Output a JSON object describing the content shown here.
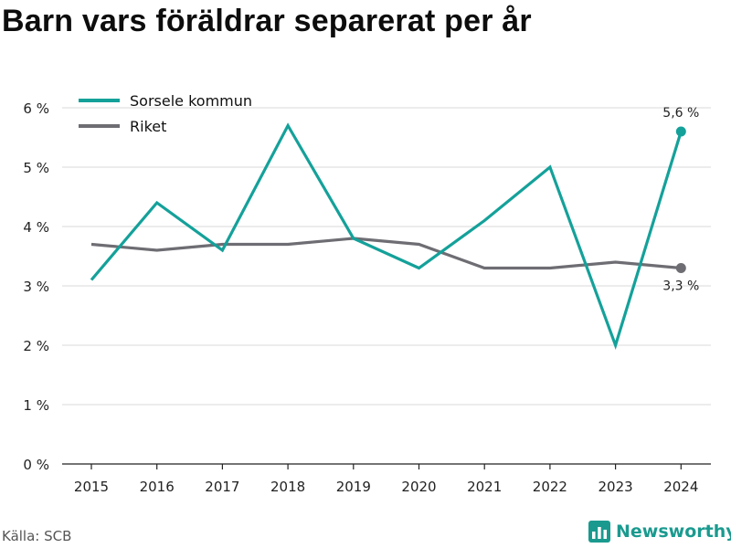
{
  "chart_data": {
    "type": "line",
    "title": "Barn vars föräldrar separerat per år",
    "categories": [
      "2015",
      "2016",
      "2017",
      "2018",
      "2019",
      "2020",
      "2021",
      "2022",
      "2023",
      "2024"
    ],
    "y_tick_labels": [
      "0 %",
      "1 %",
      "2 %",
      "3 %",
      "4 %",
      "5 %",
      "6 %"
    ],
    "ylim": [
      0,
      6
    ],
    "grid": true,
    "legend_position": "top-left",
    "series": [
      {
        "name": "Sorsele kommun",
        "color": "#14a19a",
        "values": [
          3.1,
          4.4,
          3.6,
          5.7,
          3.8,
          3.3,
          4.1,
          5.0,
          2.0,
          5.6
        ],
        "end_label": "5,6 %"
      },
      {
        "name": "Riket",
        "color": "#6e6d73",
        "values": [
          3.7,
          3.6,
          3.7,
          3.7,
          3.8,
          3.7,
          3.3,
          3.3,
          3.4,
          3.3
        ],
        "end_label": "3,3 %"
      }
    ]
  },
  "footer": {
    "source": "Källa: SCB",
    "brand": "Newsworthy",
    "brand_icon": "bar-chart-logo-icon",
    "brand_color": "#1a9a8f"
  }
}
